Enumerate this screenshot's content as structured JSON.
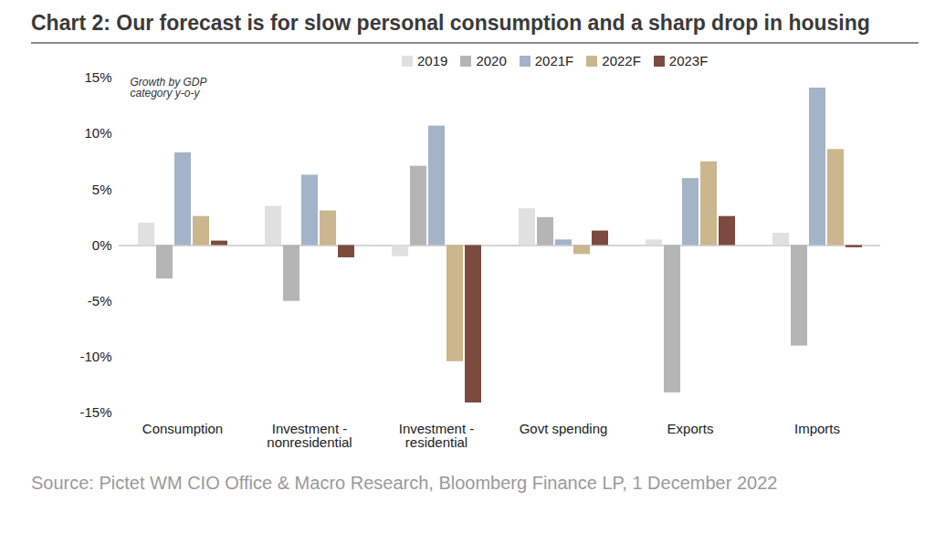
{
  "chart_data": {
    "type": "bar",
    "title": "Chart 2: Our forecast is for slow personal consumption and a sharp drop in housing",
    "annotation": "Growth by GDP category y-o-y",
    "caption": "Source: Pictet WM CIO Office & Macro Research, Bloomberg Finance LP, 1 December 2022",
    "categories": [
      "Consumption",
      "Investment -\nnonresidential",
      "Investment -\nresidential",
      "Govt spending",
      "Exports",
      "Imports"
    ],
    "series": [
      {
        "name": "2019",
        "color": "#e0e0e0",
        "values": [
          2.0,
          3.5,
          -1.0,
          3.3,
          0.5,
          1.1
        ]
      },
      {
        "name": "2020",
        "color": "#b5b5b5",
        "values": [
          -3.0,
          -5.0,
          7.1,
          2.5,
          -13.2,
          -9.0
        ]
      },
      {
        "name": "2021F",
        "color": "#a3b3c8",
        "values": [
          8.3,
          6.3,
          10.7,
          0.5,
          6.0,
          14.1
        ]
      },
      {
        "name": "2022F",
        "color": "#cbb68e",
        "values": [
          2.6,
          3.1,
          -10.4,
          -0.8,
          7.5,
          8.6
        ]
      },
      {
        "name": "2023F",
        "color": "#7d4a40",
        "values": [
          0.4,
          -1.1,
          -14.1,
          1.3,
          2.6,
          -0.2
        ]
      }
    ],
    "ylim": [
      -15,
      15
    ],
    "yticks": [
      {
        "value": -15,
        "label": "-15%"
      },
      {
        "value": -10,
        "label": "-10%"
      },
      {
        "value": -5,
        "label": "-5%"
      },
      {
        "value": 0,
        "label": "0%"
      },
      {
        "value": 5,
        "label": "5%"
      },
      {
        "value": 10,
        "label": "10%"
      },
      {
        "value": 15,
        "label": "15%"
      }
    ],
    "grid": false,
    "legend": "top"
  }
}
